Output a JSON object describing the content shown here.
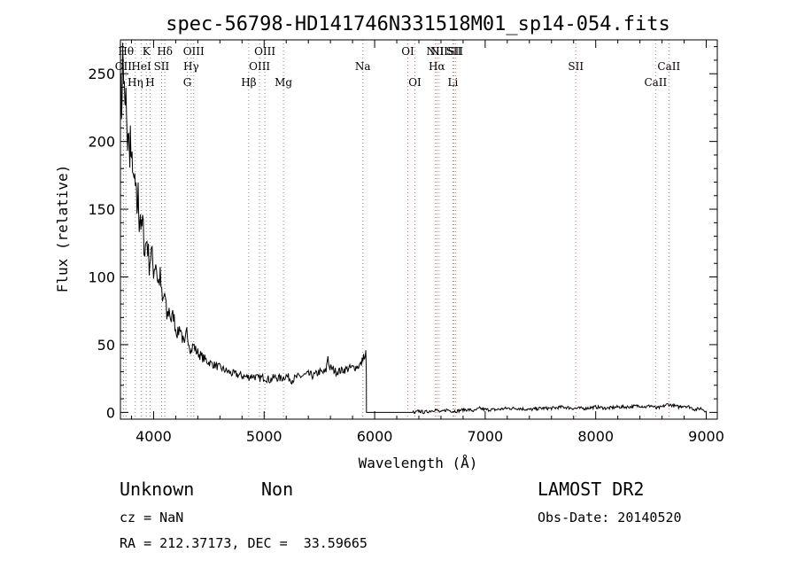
{
  "chart_data": {
    "type": "line",
    "title": "spec-56798-HD141746N331518M01_sp14-054.fits",
    "xlabel": "Wavelength (Å)",
    "ylabel": "Flux (relative)",
    "xlim": [
      3700,
      9100
    ],
    "ylim": [
      -5,
      275
    ],
    "xticks": [
      4000,
      5000,
      6000,
      7000,
      8000,
      9000
    ],
    "yticks": [
      0,
      50,
      100,
      150,
      200,
      250
    ],
    "grid": false,
    "series": [
      {
        "x": [
          3700,
          3710,
          3720,
          3730,
          3740,
          3750,
          3760,
          3770,
          3780,
          3790,
          3800,
          3810,
          3820,
          3830,
          3840,
          3850,
          3860,
          3870,
          3880,
          3890,
          3900,
          3920,
          3940,
          3960,
          3980,
          4000,
          4020,
          4040,
          4060,
          4080,
          4100,
          4120,
          4140,
          4160,
          4180,
          4200,
          4220,
          4240,
          4260,
          4280,
          4300,
          4320,
          4340,
          4360,
          4380,
          4400,
          4450,
          4500,
          4550,
          4600,
          4650,
          4700,
          4750,
          4800,
          4850,
          4900,
          4950,
          5000,
          5050,
          5100,
          5150,
          5200,
          5250,
          5300,
          5350,
          5400,
          5450,
          5500,
          5540,
          5560,
          5577,
          5590,
          5620,
          5650,
          5700,
          5750,
          5800,
          5850,
          5880,
          5893,
          5900,
          5910,
          5920,
          5925,
          5926,
          6000,
          6100,
          6200,
          6300,
          6330,
          6350,
          6360,
          6370,
          6400,
          6450,
          6500,
          6550,
          6600,
          6650,
          6700,
          6750,
          6800,
          6850,
          6900,
          6950,
          7000,
          7100,
          7200,
          7300,
          7400,
          7500,
          7600,
          7700,
          7800,
          7850,
          7900,
          8000,
          8100,
          8200,
          8300,
          8400,
          8450,
          8500,
          8550,
          8600,
          8650,
          8700,
          8750,
          8800,
          8850,
          8900,
          8950,
          9000
        ],
        "y": [
          240,
          225,
          262,
          250,
          218,
          232,
          195,
          210,
          188,
          205,
          175,
          190,
          162,
          172,
          158,
          150,
          160,
          142,
          148,
          132,
          140,
          120,
          128,
          110,
          118,
          105,
          112,
          95,
          100,
          80,
          88,
          70,
          76,
          68,
          72,
          62,
          58,
          64,
          55,
          48,
          60,
          52,
          45,
          50,
          46,
          44,
          40,
          37,
          35,
          33,
          31,
          29,
          28,
          27,
          26,
          27,
          25,
          26,
          24,
          26,
          25,
          27,
          24,
          26,
          27,
          28,
          27,
          30,
          29,
          31,
          42,
          33,
          32,
          30,
          31,
          32,
          33,
          34,
          36,
          40,
          42,
          38,
          44,
          30,
          0,
          0,
          0,
          0,
          0,
          0,
          0,
          -1,
          0,
          1,
          0,
          1,
          2,
          0,
          2,
          1,
          1,
          2,
          2,
          1,
          3,
          2,
          2,
          3,
          3,
          2,
          3,
          3,
          4,
          3,
          3,
          3,
          4,
          3,
          4,
          4,
          5,
          4,
          5,
          3,
          4,
          6,
          5,
          4,
          5,
          4,
          2,
          3,
          1
        ]
      }
    ],
    "annotations": [
      {
        "label": "OII",
        "x": 3727,
        "row": 2
      },
      {
        "label": "Hθ",
        "x": 3750,
        "row": 1
      },
      {
        "label": "Hη",
        "x": 3835,
        "row": 3
      },
      {
        "label": "HeI",
        "x": 3889,
        "row": 2
      },
      {
        "label": "K",
        "x": 3934,
        "row": 1
      },
      {
        "label": "H",
        "x": 3968,
        "row": 3
      },
      {
        "label": "SII",
        "x": 4072,
        "row": 2
      },
      {
        "label": "Hδ",
        "x": 4102,
        "row": 1
      },
      {
        "label": "G",
        "x": 4305,
        "row": 3
      },
      {
        "label": "Hγ",
        "x": 4340,
        "row": 2
      },
      {
        "label": "OIII",
        "x": 4363,
        "row": 1
      },
      {
        "label": "Hβ",
        "x": 4861,
        "row": 3
      },
      {
        "label": "OIII",
        "x": 4959,
        "row": 2
      },
      {
        "label": "OIII",
        "x": 5007,
        "row": 1
      },
      {
        "label": "Mg",
        "x": 5175,
        "row": 3
      },
      {
        "label": "Na",
        "x": 5893,
        "row": 2
      },
      {
        "label": "OI",
        "x": 6300,
        "row": 1
      },
      {
        "label": "OI",
        "x": 6364,
        "row": 3
      },
      {
        "label": "NII",
        "x": 6548,
        "row": 1
      },
      {
        "label": "Hα",
        "x": 6563,
        "row": 2
      },
      {
        "label": "NII",
        "x": 6583,
        "row": 1
      },
      {
        "label": "Li",
        "x": 6708,
        "row": 3
      },
      {
        "label": "SII",
        "x": 6716,
        "row": 1
      },
      {
        "label": "SII",
        "x": 6731,
        "row": 1
      },
      {
        "label": "SII",
        "x": 7820,
        "row": 2
      },
      {
        "label": "CaII",
        "x": 8542,
        "row": 3
      },
      {
        "label": "CaII",
        "x": 8662,
        "row": 2
      }
    ]
  },
  "info": {
    "class": "Unknown",
    "subclass": "Non",
    "cz": "cz = NaN",
    "radec": "RA = 212.37173, DEC =  33.59665",
    "survey": "LAMOST DR2",
    "obsdate": "Obs-Date: 20140520"
  }
}
